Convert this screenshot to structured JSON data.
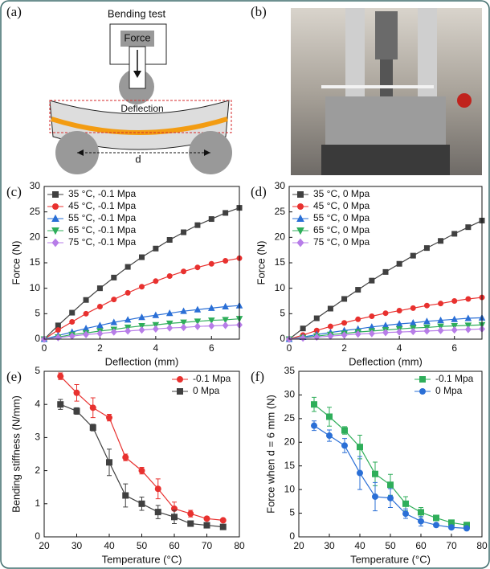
{
  "panel_a": {
    "label": "(a)",
    "title": "Bending test",
    "force": "Force",
    "deflection": "Deflection",
    "span": "d"
  },
  "panel_b": {
    "label": "(b)"
  },
  "chart_data": [
    {
      "type": "line",
      "label": "(c)",
      "xlabel": "Deflection (mm)",
      "ylabel": "Force (N)",
      "x": [
        0,
        0.5,
        1,
        1.5,
        2,
        2.5,
        3,
        3.5,
        4,
        4.5,
        5,
        5.5,
        6,
        6.5,
        7
      ],
      "xlim": [
        0,
        7
      ],
      "xticks": [
        0,
        2,
        4,
        6
      ],
      "ylim": [
        0,
        30
      ],
      "yticks": [
        0,
        5,
        10,
        15,
        20,
        25,
        30
      ],
      "legend": "upper left",
      "series": [
        {
          "name": "35 °C, -0.1 Mpa",
          "color": "#404040",
          "marker": "square",
          "values": [
            0,
            2.7,
            5.2,
            7.7,
            10.0,
            12.1,
            14.2,
            16.1,
            17.8,
            19.5,
            21.0,
            22.4,
            23.6,
            24.8,
            25.8
          ]
        },
        {
          "name": "45 °C, -0.1 Mpa",
          "color": "#e8312f",
          "marker": "circle",
          "values": [
            0,
            1.8,
            3.4,
            5.0,
            6.4,
            7.8,
            9.1,
            10.3,
            11.4,
            12.4,
            13.3,
            14.1,
            14.8,
            15.4,
            15.9
          ]
        },
        {
          "name": "55 °C, -0.1 Mpa",
          "color": "#2a6fd6",
          "marker": "triangle-up",
          "values": [
            0,
            0.7,
            1.4,
            2.1,
            2.7,
            3.3,
            3.8,
            4.3,
            4.7,
            5.1,
            5.5,
            5.8,
            6.1,
            6.4,
            6.6
          ]
        },
        {
          "name": "65 °C, -0.1 Mpa",
          "color": "#2fae5a",
          "marker": "triangle-down",
          "values": [
            0,
            0.4,
            0.9,
            1.2,
            1.6,
            1.9,
            2.3,
            2.6,
            2.8,
            3.1,
            3.3,
            3.5,
            3.7,
            3.8,
            4.0
          ]
        },
        {
          "name": "75 °C, -0.1 Mpa",
          "color": "#b77de8",
          "marker": "diamond",
          "values": [
            0,
            0.3,
            0.6,
            0.9,
            1.1,
            1.4,
            1.6,
            1.8,
            2.0,
            2.2,
            2.3,
            2.5,
            2.6,
            2.7,
            2.8
          ]
        }
      ]
    },
    {
      "type": "line",
      "label": "(d)",
      "xlabel": "Deflection (mm)",
      "ylabel": "Force (N)",
      "x": [
        0,
        0.5,
        1,
        1.5,
        2,
        2.5,
        3,
        3.5,
        4,
        4.5,
        5,
        5.5,
        6,
        6.5,
        7
      ],
      "xlim": [
        0,
        7
      ],
      "xticks": [
        0,
        2,
        4,
        6
      ],
      "ylim": [
        0,
        30
      ],
      "yticks": [
        0,
        5,
        10,
        15,
        20,
        25,
        30
      ],
      "legend": "upper left",
      "series": [
        {
          "name": "35 °C, 0 Mpa",
          "color": "#404040",
          "marker": "square",
          "values": [
            0,
            2.1,
            4.1,
            6.0,
            7.9,
            9.7,
            11.5,
            13.2,
            14.8,
            16.4,
            17.9,
            19.3,
            20.7,
            22.0,
            23.3
          ]
        },
        {
          "name": "45 °C, 0 Mpa",
          "color": "#e8312f",
          "marker": "circle",
          "values": [
            0,
            0.8,
            1.7,
            2.5,
            3.2,
            3.9,
            4.5,
            5.1,
            5.6,
            6.1,
            6.6,
            7.0,
            7.5,
            7.9,
            8.2
          ]
        },
        {
          "name": "55 °C, 0 Mpa",
          "color": "#2a6fd6",
          "marker": "triangle-up",
          "values": [
            0,
            0.4,
            0.9,
            1.3,
            1.7,
            2.0,
            2.4,
            2.7,
            3.0,
            3.2,
            3.5,
            3.7,
            3.9,
            4.1,
            4.2
          ]
        },
        {
          "name": "65 °C, 0 Mpa",
          "color": "#2fae5a",
          "marker": "triangle-down",
          "values": [
            0,
            0.3,
            0.6,
            0.9,
            1.1,
            1.4,
            1.6,
            1.8,
            2.0,
            2.2,
            2.3,
            2.5,
            2.6,
            2.7,
            2.8
          ]
        },
        {
          "name": "75 °C, 0 Mpa",
          "color": "#b77de8",
          "marker": "diamond",
          "values": [
            0,
            0.2,
            0.4,
            0.6,
            0.8,
            1.0,
            1.1,
            1.3,
            1.4,
            1.5,
            1.6,
            1.7,
            1.8,
            1.9,
            2.0
          ]
        }
      ]
    },
    {
      "type": "line",
      "label": "(e)",
      "xlabel": "Temperature (°C)",
      "ylabel": "Bending stiffness (N/mm)",
      "x": [
        25,
        30,
        35,
        40,
        45,
        50,
        55,
        60,
        65,
        70,
        75
      ],
      "xlim": [
        20,
        80
      ],
      "xticks": [
        20,
        30,
        40,
        50,
        60,
        70,
        80
      ],
      "ylim": [
        0,
        5
      ],
      "yticks": [
        0,
        1,
        2,
        3,
        4,
        5
      ],
      "legend": "upper right",
      "series": [
        {
          "name": "-0.1 Mpa",
          "color": "#e8312f",
          "marker": "circle",
          "values": [
            4.85,
            4.35,
            3.9,
            3.6,
            2.4,
            2.0,
            1.45,
            0.85,
            0.7,
            0.55,
            0.5
          ],
          "errors": [
            0.1,
            0.25,
            0.3,
            0.1,
            0.1,
            0.1,
            0.3,
            0.2,
            0.1,
            0.05,
            0.05
          ]
        },
        {
          "name": "0 Mpa",
          "color": "#404040",
          "marker": "square",
          "values": [
            4.0,
            3.8,
            3.3,
            2.25,
            1.25,
            1.0,
            0.75,
            0.6,
            0.4,
            0.35,
            0.3
          ],
          "errors": [
            0.15,
            0.1,
            0.1,
            0.4,
            0.35,
            0.2,
            0.2,
            0.2,
            0.05,
            0.05,
            0.05
          ]
        }
      ]
    },
    {
      "type": "line",
      "label": "(f)",
      "xlabel": "Temperature (°C)",
      "ylabel": "Force when d = 6 mm (N)",
      "x": [
        25,
        30,
        35,
        40,
        45,
        50,
        55,
        60,
        65,
        70,
        75
      ],
      "xlim": [
        20,
        80
      ],
      "xticks": [
        20,
        30,
        40,
        50,
        60,
        70,
        80
      ],
      "ylim": [
        0,
        35
      ],
      "yticks": [
        0,
        5,
        10,
        15,
        20,
        25,
        30,
        35
      ],
      "legend": "upper right",
      "series": [
        {
          "name": "-0.1 Mpa",
          "color": "#2fae5a",
          "marker": "square",
          "values": [
            28,
            25.4,
            22.5,
            19,
            13.3,
            11,
            7,
            5.2,
            4,
            3,
            2.5
          ],
          "errors": [
            1.5,
            2,
            0.8,
            2.5,
            2.5,
            2.2,
            1.5,
            1,
            0.5,
            0.5,
            0.3
          ]
        },
        {
          "name": "0 Mpa",
          "color": "#2a6fd6",
          "marker": "circle",
          "values": [
            23.5,
            21.4,
            19.3,
            13.5,
            8.5,
            8.2,
            4.9,
            3.3,
            2.5,
            2,
            1.8
          ],
          "errors": [
            1,
            1.2,
            1.5,
            3.5,
            3,
            2,
            1,
            1,
            0.3,
            0.3,
            0.3
          ]
        }
      ]
    }
  ]
}
